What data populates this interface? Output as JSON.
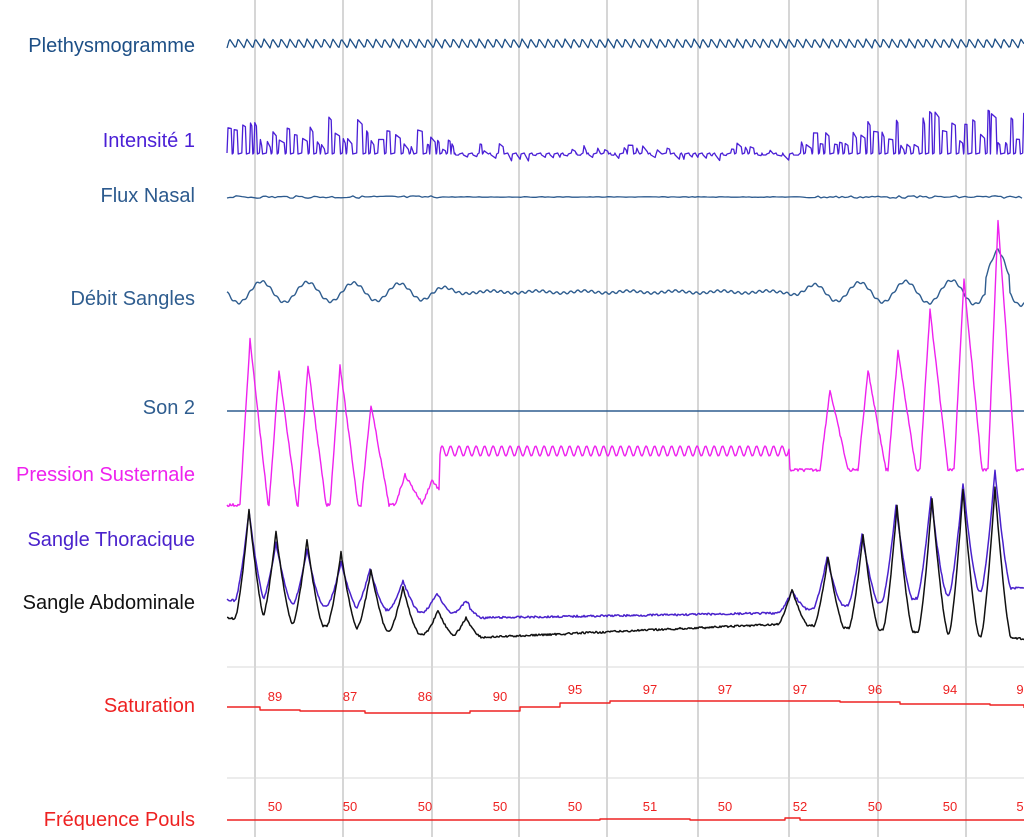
{
  "chart_data": {
    "type": "line",
    "channels": [
      {
        "key": "pleth",
        "name": "Plethysmogramme",
        "color": "#1d4f86"
      },
      {
        "key": "intensite",
        "name": "Intensité 1",
        "color": "#4a1fd6"
      },
      {
        "key": "flux",
        "name": "Flux Nasal",
        "color": "#2c5a8e"
      },
      {
        "key": "debit",
        "name": "Débit Sangles",
        "color": "#2f5d8f"
      },
      {
        "key": "son",
        "name": "Son 2",
        "color": "#2f5d8f"
      },
      {
        "key": "pression",
        "name": "Pression Susternale",
        "color": "#ee22ee"
      },
      {
        "key": "thoracique",
        "name": "Sangle Thoracique",
        "color": "#4a22cc"
      },
      {
        "key": "abdominale",
        "name": "Sangle Abdominale",
        "color": "#111111"
      },
      {
        "key": "saturation",
        "name": "Saturation",
        "color": "#ee2222"
      },
      {
        "key": "pouls",
        "name": "Fréquence Pouls",
        "color": "#ee2222"
      }
    ],
    "saturation_values": [
      "89",
      "87",
      "86",
      "90",
      "95",
      "97",
      "97",
      "97",
      "96",
      "94",
      "9"
    ],
    "pouls_values": [
      "50",
      "50",
      "50",
      "50",
      "50",
      "51",
      "50",
      "52",
      "50",
      "50",
      "5"
    ],
    "grid_color": "#c8c8c8"
  }
}
